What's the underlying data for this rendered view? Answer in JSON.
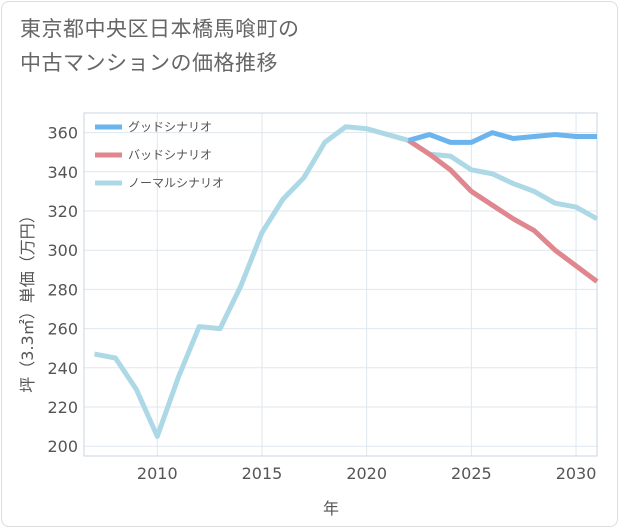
{
  "title_lines": [
    "東京都中央区日本橋馬喰町の",
    "中古マンションの価格推移"
  ],
  "chart_data": {
    "type": "line",
    "title": "東京都中央区日本橋馬喰町の中古マンションの価格推移",
    "xlabel": "年",
    "ylabel": "坪（3.3㎡）単価（万円）",
    "xlim": [
      2006.5,
      2031
    ],
    "ylim": [
      195,
      370
    ],
    "x_ticks": [
      2010,
      2015,
      2020,
      2025,
      2030
    ],
    "y_ticks": [
      200,
      220,
      240,
      260,
      280,
      300,
      320,
      340,
      360
    ],
    "grid": true,
    "legend_position": "top-left",
    "series": [
      {
        "name": "グッドシナリオ",
        "color": "#6cb4ee",
        "x": [
          2022,
          2023,
          2024,
          2025,
          2026,
          2027,
          2028,
          2029,
          2030,
          2031
        ],
        "values": [
          356,
          359,
          355,
          355,
          360,
          357,
          358,
          359,
          358,
          358
        ]
      },
      {
        "name": "バッドシナリオ",
        "color": "#e0868e",
        "x": [
          2022,
          2023,
          2024,
          2025,
          2026,
          2027,
          2028,
          2029,
          2030,
          2031
        ],
        "values": [
          356,
          349,
          341,
          330,
          323,
          316,
          310,
          300,
          292,
          284
        ]
      },
      {
        "name": "ノーマルシナリオ",
        "color": "#add8e6",
        "x": [
          2007,
          2008,
          2009,
          2010,
          2011,
          2012,
          2013,
          2014,
          2015,
          2016,
          2017,
          2018,
          2019,
          2020,
          2021,
          2022,
          2023,
          2024,
          2025,
          2026,
          2027,
          2028,
          2029,
          2030,
          2031
        ],
        "values": [
          247,
          245,
          229,
          205,
          235,
          261,
          260,
          282,
          309,
          326,
          337,
          355,
          363,
          362,
          359,
          356,
          349,
          348,
          341,
          339,
          334,
          330,
          324,
          322,
          316
        ]
      }
    ]
  }
}
